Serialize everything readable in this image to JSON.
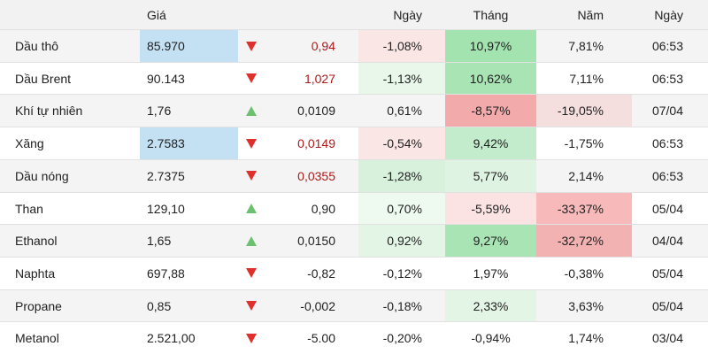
{
  "header": {
    "name": "",
    "price": "Giá",
    "change": "",
    "day": "Ngày",
    "month": "Tháng",
    "year": "Năm",
    "time": "Ngày"
  },
  "colors": {
    "up_arrow": "#6cc070",
    "down_arrow": "#e0302e",
    "neg_change_text": "#b01717",
    "price_highlight": "#c4e1f3",
    "green_strong": "#a3e3b0",
    "green_mid": "#c2eccb",
    "green_light": "#e3f6e6",
    "red_strong": "#f2aaaa",
    "red_mid": "#f7c9c9",
    "red_light": "#fbe6e6"
  },
  "rows": [
    {
      "name": "Dầu thô",
      "price": "85.970",
      "dir": "down",
      "change": "0,94",
      "day": "-1,08%",
      "month": "10,97%",
      "year": "7,81%",
      "time": "06:53",
      "price_hl": true,
      "change_neg_color": true,
      "day_bg": "#fbe6e6",
      "month_bg": "#a3e3b0",
      "year_bg": ""
    },
    {
      "name": "Dầu Brent",
      "price": "90.143",
      "dir": "down",
      "change": "1,027",
      "day": "-1,13%",
      "month": "10,62%",
      "year": "7,11%",
      "time": "06:53",
      "price_hl": false,
      "change_neg_color": true,
      "day_bg": "#e8f7ea",
      "month_bg": "#a8e4b4",
      "year_bg": ""
    },
    {
      "name": "Khí tự nhiên",
      "price": "1,76",
      "dir": "up",
      "change": "0,0109",
      "day": "0,61%",
      "month": "-8,57%",
      "year": "-19,05%",
      "time": "07/04",
      "price_hl": false,
      "change_neg_color": false,
      "day_bg": "",
      "month_bg": "#f2aaaa",
      "year_bg": "#f4dede"
    },
    {
      "name": "Xăng",
      "price": "2.7583",
      "dir": "down",
      "change": "0,0149",
      "day": "-0,54%",
      "month": "9,42%",
      "year": "-1,75%",
      "time": "06:53",
      "price_hl": true,
      "change_neg_color": true,
      "day_bg": "#fbe6e6",
      "month_bg": "#c2eccb",
      "year_bg": ""
    },
    {
      "name": "Dầu nóng",
      "price": "2.7375",
      "dir": "down",
      "change": "0,0355",
      "day": "-1,28%",
      "month": "5,77%",
      "year": "2,14%",
      "time": "06:53",
      "price_hl": false,
      "change_neg_color": true,
      "day_bg": "#d8f1dd",
      "month_bg": "#dff3e3",
      "year_bg": ""
    },
    {
      "name": "Than",
      "price": "129,10",
      "dir": "up",
      "change": "0,90",
      "day": "0,70%",
      "month": "-5,59%",
      "year": "-33,37%",
      "time": "05/04",
      "price_hl": false,
      "change_neg_color": false,
      "day_bg": "#eef9f0",
      "month_bg": "#fbe3e3",
      "year_bg": "#f7b9b9"
    },
    {
      "name": "Ethanol",
      "price": "1,65",
      "dir": "up",
      "change": "0,0150",
      "day": "0,92%",
      "month": "9,27%",
      "year": "-32,72%",
      "time": "04/04",
      "price_hl": false,
      "change_neg_color": false,
      "day_bg": "#e3f6e6",
      "month_bg": "#a8e4b4",
      "year_bg": "#f2b2b2"
    },
    {
      "name": "Naphta",
      "price": "697,88",
      "dir": "down",
      "change": "-0,82",
      "day": "-0,12%",
      "month": "1,97%",
      "year": "-0,38%",
      "time": "05/04",
      "price_hl": false,
      "change_neg_color": false,
      "day_bg": "",
      "month_bg": "",
      "year_bg": ""
    },
    {
      "name": "Propane",
      "price": "0,85",
      "dir": "down",
      "change": "-0,002",
      "day": "-0,18%",
      "month": "2,33%",
      "year": "3,63%",
      "time": "05/04",
      "price_hl": false,
      "change_neg_color": false,
      "day_bg": "",
      "month_bg": "#e3f6e6",
      "year_bg": ""
    },
    {
      "name": "Metanol",
      "price": "2.521,00",
      "dir": "down",
      "change": "-5.00",
      "day": "-0,20%",
      "month": "-0,94%",
      "year": "1,74%",
      "time": "03/04",
      "price_hl": false,
      "change_neg_color": false,
      "day_bg": "",
      "month_bg": "",
      "year_bg": ""
    }
  ]
}
